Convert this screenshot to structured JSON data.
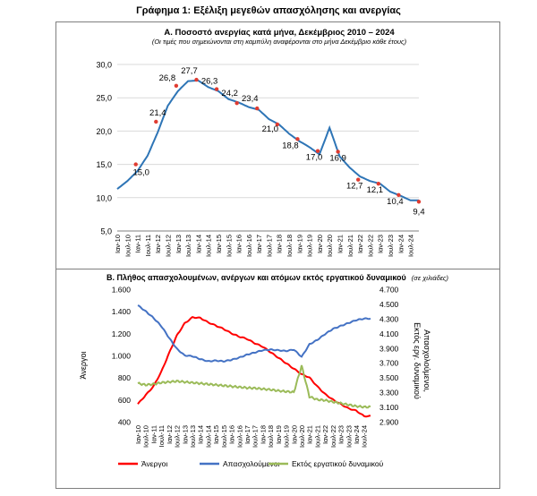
{
  "page": {
    "main_title": "Γράφημα 1: Εξέλιξη μεγεθών απασχόλησης και ανεργίας"
  },
  "chart_data": [
    {
      "type": "line",
      "title": "Α. Ποσοστό ανεργίας κατά μήνα, Δεκέμβριος 2010 – 2024",
      "subtitle": "(Οι τιμές που σημειώνονται στη καμπύλη αναφέρονται στο μήνα Δεκέμβριο κάθε έτους)",
      "ylim": [
        5,
        30
      ],
      "yticks": [
        "5,0",
        "10,0",
        "15,0",
        "20,0",
        "25,0",
        "30,0"
      ],
      "grid": "horizontal",
      "categories": [
        "Ιαν-10",
        "Ιουλ-10",
        "Ιαν-11",
        "Ιουλ-11",
        "Ιαν-12",
        "Ιουλ-12",
        "Ιαν-13",
        "Ιουλ-13",
        "Ιαν-14",
        "Ιουλ-14",
        "Ιαν-15",
        "Ιουλ-15",
        "Ιαν-16",
        "Ιουλ-16",
        "Ιαν-17",
        "Ιουλ-17",
        "Ιαν-18",
        "Ιουλ-18",
        "Ιαν-19",
        "Ιουλ-19",
        "Ιαν-20",
        "Ιουλ-20",
        "Ιαν-21",
        "Ιουλ-21",
        "Ιαν-22",
        "Ιουλ-22",
        "Ιαν-23",
        "Ιουλ-23",
        "Ιαν-24",
        "Ιουλ-24"
      ],
      "series": [
        {
          "color": "#2e75b6",
          "values": [
            11.3,
            12.5,
            14.0,
            16.3,
            19.8,
            23.8,
            26.0,
            27.5,
            27.6,
            26.6,
            26.0,
            24.8,
            24.3,
            23.6,
            23.2,
            21.8,
            21.0,
            19.6,
            18.5,
            17.6,
            16.5,
            20.5,
            16.2,
            14.5,
            13.2,
            12.5,
            12.1,
            10.9,
            10.3,
            9.6
          ]
        }
      ],
      "december_markers": [
        {
          "label": "15,0",
          "value": 15.0
        },
        {
          "label": "21,4",
          "value": 21.4
        },
        {
          "label": "26,8",
          "value": 26.8
        },
        {
          "label": "27,7",
          "value": 27.7
        },
        {
          "label": "26,3",
          "value": 26.3
        },
        {
          "label": "24,2",
          "value": 24.2
        },
        {
          "label": "23,4",
          "value": 23.4
        },
        {
          "label": "21,0",
          "value": 21.0
        },
        {
          "label": "18,8",
          "value": 18.8
        },
        {
          "label": "17,0",
          "value": 17.0
        },
        {
          "label": "16,9",
          "value": 16.9
        },
        {
          "label": "12,7",
          "value": 12.7
        },
        {
          "label": "12,1",
          "value": 12.1
        },
        {
          "label": "10,4",
          "value": 10.4
        },
        {
          "label": "9,4",
          "value": 9.4
        }
      ],
      "marker_color": "#e03c31"
    },
    {
      "type": "line",
      "title": "Β. Πλήθος απασχολουμένων, ανέργων και ατόμων εκτός εργατικού δυναμικού",
      "title_note": "(σε χιλιάδες)",
      "ylabel": "Άνεργοι",
      "y2label": "Απασχολούμενοι, Εκτός εργ. δυναμικού",
      "ylim": [
        400,
        1600
      ],
      "yticks": [
        "400",
        "600",
        "800",
        "1.000",
        "1.200",
        "1.400",
        "1.600"
      ],
      "y2lim": [
        2900,
        4700
      ],
      "y2ticks": [
        "2.900",
        "3.100",
        "3.300",
        "3.500",
        "3.700",
        "3.900",
        "4.100",
        "4.300",
        "4.500",
        "4.700"
      ],
      "categories": [
        "Ιαν-10",
        "Ιουλ-10",
        "Ιαν-11",
        "Ιουλ-11",
        "Ιαν-12",
        "Ιουλ-12",
        "Ιαν-13",
        "Ιουλ-13",
        "Ιαν-14",
        "Ιουλ-14",
        "Ιαν-15",
        "Ιουλ-15",
        "Ιαν-16",
        "Ιουλ-16",
        "Ιαν-17",
        "Ιουλ-17",
        "Ιαν-18",
        "Ιουλ-18",
        "Ιαν-19",
        "Ιουλ-19",
        "Ιαν-20",
        "Ιουλ-20",
        "Ιαν-21",
        "Ιουλ-21",
        "Ιαν-22",
        "Ιουλ-22",
        "Ιαν-23",
        "Ιουλ-23",
        "Ιαν-24",
        "Ιουλ-24"
      ],
      "series": [
        {
          "name": "Άνεργοι",
          "color": "#ff0000",
          "axis": "left",
          "values": [
            560,
            640,
            720,
            850,
            1020,
            1180,
            1290,
            1345,
            1340,
            1300,
            1270,
            1240,
            1200,
            1170,
            1150,
            1110,
            1080,
            1030,
            980,
            930,
            880,
            830,
            800,
            720,
            650,
            600,
            560,
            520,
            500,
            450
          ]
        },
        {
          "name": "Απασχολούμενοι",
          "color": "#4472c4",
          "axis": "right",
          "values": [
            4480,
            4400,
            4310,
            4200,
            4040,
            3890,
            3800,
            3790,
            3750,
            3720,
            3730,
            3720,
            3740,
            3770,
            3810,
            3840,
            3870,
            3880,
            3870,
            3860,
            3880,
            3780,
            3950,
            4010,
            4090,
            4160,
            4200,
            4240,
            4280,
            4300
          ]
        },
        {
          "name": "Εκτός εργατικού δυναμικού",
          "color": "#9bbb59",
          "axis": "right",
          "values": [
            3420,
            3400,
            3410,
            3430,
            3440,
            3450,
            3440,
            3430,
            3420,
            3410,
            3400,
            3390,
            3380,
            3370,
            3360,
            3355,
            3345,
            3335,
            3320,
            3310,
            3300,
            3660,
            3240,
            3200,
            3190,
            3170,
            3150,
            3130,
            3110,
            3100
          ]
        }
      ],
      "legend_position": "bottom"
    }
  ]
}
